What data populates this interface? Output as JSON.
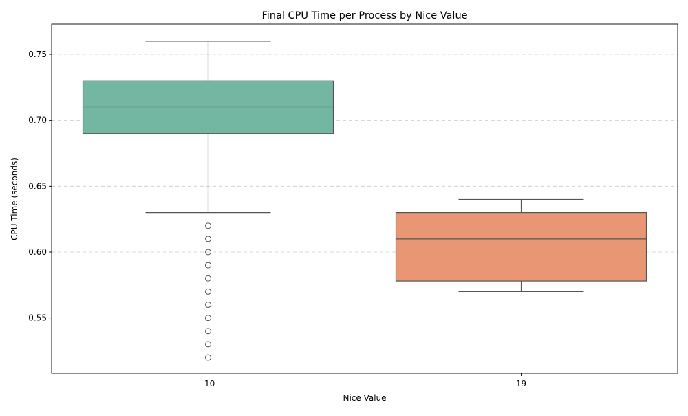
{
  "chart_data": {
    "type": "box",
    "title": "Final CPU Time per Process by Nice Value",
    "xlabel": "Nice Value",
    "ylabel": "CPU Time (seconds)",
    "ylim": [
      0.508,
      0.773
    ],
    "yticks": [
      "0.55",
      "0.60",
      "0.65",
      "0.70",
      "0.75"
    ],
    "grid": "y-dashed",
    "legend": "none",
    "categories": [
      "-10",
      "19"
    ],
    "boxes": [
      {
        "category": "-10",
        "color": "#73b7a2",
        "whisker_low": 0.63,
        "q1": 0.69,
        "median": 0.71,
        "q3": 0.73,
        "whisker_high": 0.76,
        "outliers": [
          0.62,
          0.61,
          0.6,
          0.59,
          0.58,
          0.57,
          0.56,
          0.55,
          0.54,
          0.53,
          0.52
        ]
      },
      {
        "category": "19",
        "color": "#e99675",
        "whisker_low": 0.57,
        "q1": 0.578,
        "median": 0.61,
        "q3": 0.63,
        "whisker_high": 0.64,
        "outliers": []
      }
    ]
  }
}
